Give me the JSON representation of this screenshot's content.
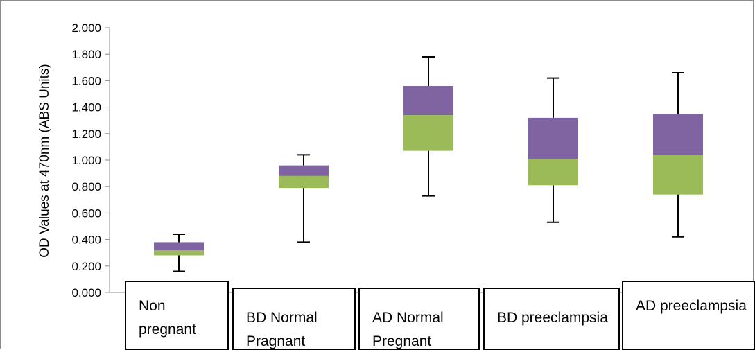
{
  "chart_data": {
    "type": "box",
    "ylabel": "OD Values at 470nm (ABS Units)",
    "ylim": [
      0,
      2.0
    ],
    "y_ticks": [
      "0.000",
      "0.200",
      "0.400",
      "0.600",
      "0.800",
      "1.000",
      "1.200",
      "1.400",
      "1.600",
      "1.800",
      "2.000"
    ],
    "categories": [
      "Non pregnant",
      "BD Normal Pragnant",
      "AD Normal Pregnant",
      "BD preeclampsia",
      "AD preeclampsia"
    ],
    "boxes": [
      {
        "min": 0.16,
        "q1": 0.28,
        "median": 0.32,
        "q3": 0.38,
        "max": 0.44
      },
      {
        "min": 0.38,
        "q1": 0.79,
        "median": 0.88,
        "q3": 0.96,
        "max": 1.04
      },
      {
        "min": 0.73,
        "q1": 1.07,
        "median": 1.34,
        "q3": 1.56,
        "max": 1.78
      },
      {
        "min": 0.53,
        "q1": 0.81,
        "median": 1.01,
        "q3": 1.32,
        "max": 1.62
      },
      {
        "min": 0.42,
        "q1": 0.74,
        "median": 1.04,
        "q3": 1.35,
        "max": 1.66
      }
    ],
    "colors": {
      "lower_box": "#9bbb59",
      "upper_box": "#8064a2",
      "whisker": "#000000"
    },
    "grid": false,
    "legend": "none"
  }
}
